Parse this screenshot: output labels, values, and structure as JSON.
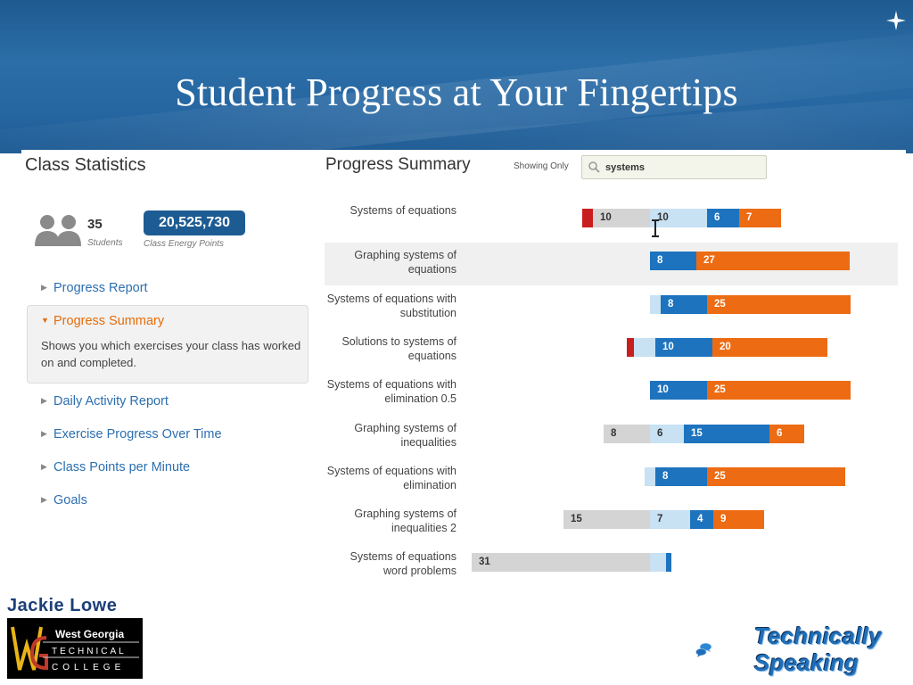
{
  "slide": {
    "title": "Student Progress at Your Fingertips"
  },
  "class_stats": {
    "title": "Class Statistics",
    "students_count": "35",
    "students_label": "Students",
    "energy_points": "20,525,730",
    "energy_points_label": "Class Energy Points"
  },
  "nav": {
    "items": [
      {
        "label": "Progress Report",
        "active": false
      },
      {
        "label": "Progress Summary",
        "active": true,
        "description": "Shows you which exercises your class has worked on and completed."
      },
      {
        "label": "Daily Activity Report",
        "active": false
      },
      {
        "label": "Exercise Progress Over Time",
        "active": false
      },
      {
        "label": "Class Points per Minute",
        "active": false
      },
      {
        "label": "Goals",
        "active": false
      }
    ]
  },
  "progress_summary": {
    "title": "Progress Summary",
    "filter_label": "Showing Only",
    "filter_value": "systems",
    "rows": [
      {
        "label": "Systems of equations",
        "highlighted": false,
        "segments": [
          {
            "kind": "red",
            "value": null
          },
          {
            "kind": "gray",
            "value": "10"
          },
          {
            "kind": "lightblue",
            "value": "10"
          },
          {
            "kind": "blue",
            "value": "6"
          },
          {
            "kind": "orange",
            "value": "7"
          }
        ]
      },
      {
        "label": "Graphing systems of equations",
        "highlighted": true,
        "segments": [
          {
            "kind": "blue",
            "value": "8"
          },
          {
            "kind": "orange",
            "value": "27"
          }
        ]
      },
      {
        "label": "Systems of equations with substitution",
        "highlighted": false,
        "segments": [
          {
            "kind": "lightblue",
            "value": null
          },
          {
            "kind": "blue",
            "value": "8"
          },
          {
            "kind": "orange",
            "value": "25"
          }
        ]
      },
      {
        "label": "Solutions to systems of equations",
        "highlighted": false,
        "segments": [
          {
            "kind": "red",
            "value": null
          },
          {
            "kind": "lightblue",
            "value": null
          },
          {
            "kind": "blue",
            "value": "10"
          },
          {
            "kind": "orange",
            "value": "20"
          }
        ]
      },
      {
        "label": "Systems of equations with elimination 0.5",
        "highlighted": false,
        "segments": [
          {
            "kind": "blue",
            "value": "10"
          },
          {
            "kind": "orange",
            "value": "25"
          }
        ]
      },
      {
        "label": "Graphing systems of inequalities",
        "highlighted": false,
        "segments": [
          {
            "kind": "gray",
            "value": "8"
          },
          {
            "kind": "lightblue",
            "value": "6"
          },
          {
            "kind": "blue",
            "value": "15"
          },
          {
            "kind": "orange",
            "value": "6"
          }
        ]
      },
      {
        "label": "Systems of equations with elimination",
        "highlighted": false,
        "segments": [
          {
            "kind": "lightblue",
            "value": null
          },
          {
            "kind": "blue",
            "value": "8"
          },
          {
            "kind": "orange",
            "value": "25"
          }
        ]
      },
      {
        "label": "Graphing systems of inequalities 2",
        "highlighted": false,
        "segments": [
          {
            "kind": "gray",
            "value": "15"
          },
          {
            "kind": "lightblue",
            "value": "7"
          },
          {
            "kind": "blue",
            "value": "4"
          },
          {
            "kind": "orange",
            "value": "9"
          }
        ]
      },
      {
        "label": "Systems of equations word problems",
        "highlighted": false,
        "segments": [
          {
            "kind": "gray",
            "value": "31"
          },
          {
            "kind": "lightblue",
            "value": null
          },
          {
            "kind": "tick",
            "value": null
          }
        ]
      }
    ]
  },
  "footer": {
    "author": "Jackie Lowe",
    "college_logo_text": [
      "West Georgia",
      "TECHNICAL",
      "COLLEGE"
    ],
    "brand_line1": "Technically",
    "brand_line2": "Speaking"
  },
  "colors": {
    "header_blue": "#2565a0",
    "link_blue": "#2c6fb0",
    "active_orange": "#e46c0a",
    "bar_red": "#c81e1e",
    "bar_gray": "#d4d4d4",
    "bar_lightblue": "#c8e1f3",
    "bar_blue": "#1e73be",
    "bar_orange": "#ed6b12"
  }
}
